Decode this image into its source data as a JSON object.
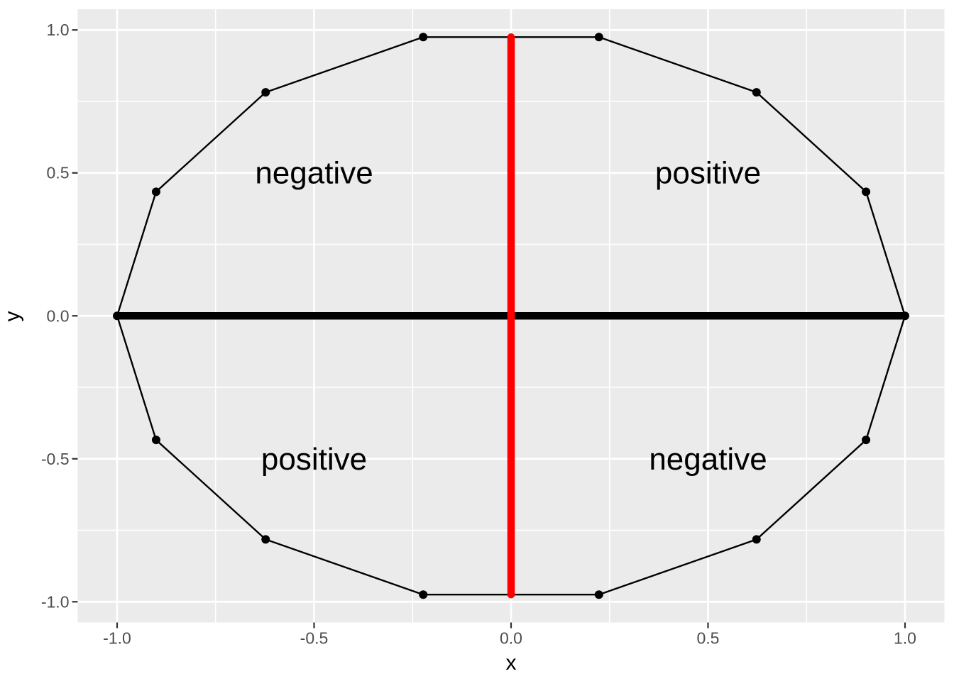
{
  "figure": {
    "background": "#FFFFFF",
    "panel_background": "#EBEBEB",
    "grid_color": "#FFFFFF",
    "tick_mark_color": "#333333",
    "tick_label_color": "#4D4D4D",
    "annotation_color": "#000000"
  },
  "chart_data": {
    "type": "scatter",
    "title": "",
    "xlabel": "x",
    "ylabel": "y",
    "xlim": [
      -1.1,
      1.1
    ],
    "ylim": [
      -1.0725,
      1.0725
    ],
    "grid": true,
    "legend": false,
    "x_ticks": {
      "values": [
        -1.0,
        -0.5,
        0.0,
        0.5,
        1.0
      ],
      "labels": [
        "-1.0",
        "-0.5",
        "0.0",
        "0.5",
        "1.0"
      ]
    },
    "y_ticks": {
      "values": [
        -1.0,
        -0.5,
        0.0,
        0.5,
        1.0
      ],
      "labels": [
        "-1.0",
        "-0.5",
        "0.0",
        "0.5",
        "1.0"
      ]
    },
    "x_minor_gridlines": [
      -0.75,
      -0.25,
      0.25,
      0.75
    ],
    "y_minor_gridlines": [
      -0.75,
      -0.25,
      0.25,
      0.75
    ],
    "polygon": {
      "description": "closed 14-gon approximating unit circle, thin black line with solid points",
      "stroke": "#000000",
      "point_fill": "#000000",
      "points": [
        [
          1.0,
          0.0
        ],
        [
          0.901,
          0.434
        ],
        [
          0.623,
          0.782
        ],
        [
          0.223,
          0.975
        ],
        [
          -0.223,
          0.975
        ],
        [
          -0.623,
          0.782
        ],
        [
          -0.901,
          0.434
        ],
        [
          -1.0,
          0.0
        ],
        [
          -0.901,
          -0.434
        ],
        [
          -0.623,
          -0.782
        ],
        [
          -0.223,
          -0.975
        ],
        [
          0.223,
          -0.975
        ],
        [
          0.623,
          -0.782
        ],
        [
          0.901,
          -0.434
        ]
      ]
    },
    "segments": [
      {
        "name": "horizontal-zero-line",
        "x1": -1.0,
        "y1": 0.0,
        "x2": 1.0,
        "y2": 0.0,
        "color": "#000000",
        "width": 10.5,
        "cap": "butt"
      },
      {
        "name": "vertical-zero-line",
        "x1": 0.0,
        "y1": -0.975,
        "x2": 0.0,
        "y2": 0.975,
        "color": "#FF0000",
        "width": 10.5,
        "cap": "round"
      }
    ],
    "annotations": [
      {
        "label": "negative",
        "x": -0.5,
        "y": 0.5
      },
      {
        "label": "positive",
        "x": 0.5,
        "y": 0.5
      },
      {
        "label": "positive",
        "x": -0.5,
        "y": -0.5
      },
      {
        "label": "negative",
        "x": 0.5,
        "y": -0.5
      }
    ]
  }
}
